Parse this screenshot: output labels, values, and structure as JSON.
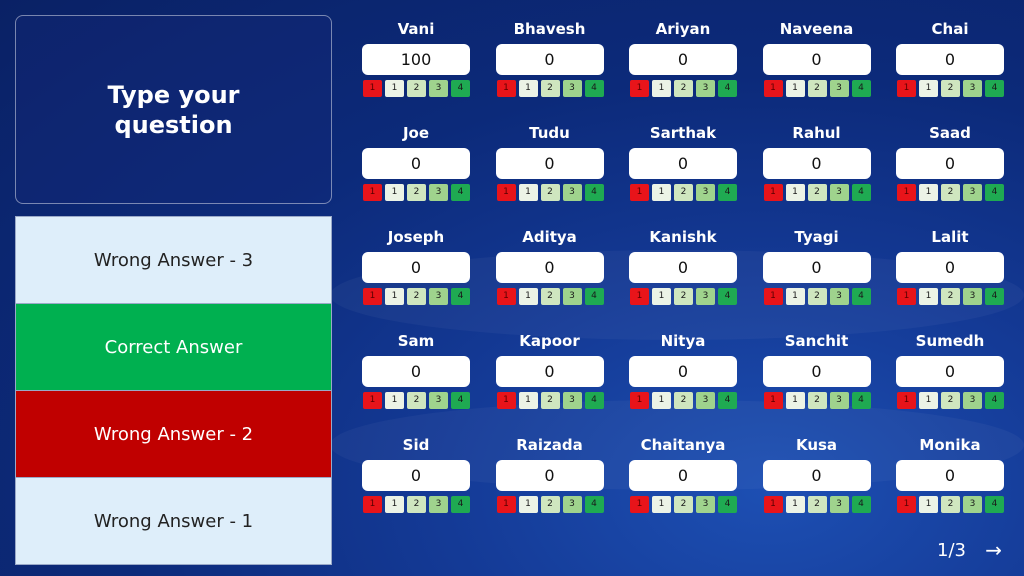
{
  "question": {
    "text": "Type your question"
  },
  "answers": [
    {
      "label": "Wrong Answer - 3",
      "color": "#deeefa",
      "text_color": "#222222"
    },
    {
      "label": "Correct Answer",
      "color": "#00b050",
      "text_color": "#ffffff"
    },
    {
      "label": "Wrong Answer - 2",
      "color": "#c00000",
      "text_color": "#ffffff"
    },
    {
      "label": "Wrong Answer - 1",
      "color": "#deeefa",
      "text_color": "#222222"
    }
  ],
  "rating_labels": [
    "1",
    "1",
    "2",
    "3",
    "4"
  ],
  "players": [
    {
      "name": "Vani",
      "score": "100"
    },
    {
      "name": "Bhavesh",
      "score": "0"
    },
    {
      "name": "Ariyan",
      "score": "0"
    },
    {
      "name": "Naveena",
      "score": "0"
    },
    {
      "name": "Chai",
      "score": "0"
    },
    {
      "name": "Joe",
      "score": "0"
    },
    {
      "name": "Tudu",
      "score": "0"
    },
    {
      "name": "Sarthak",
      "score": "0"
    },
    {
      "name": "Rahul",
      "score": "0"
    },
    {
      "name": "Saad",
      "score": "0"
    },
    {
      "name": "Joseph",
      "score": "0"
    },
    {
      "name": "Aditya",
      "score": "0"
    },
    {
      "name": "Kanishk",
      "score": "0"
    },
    {
      "name": "Tyagi",
      "score": "0"
    },
    {
      "name": "Lalit",
      "score": "0"
    },
    {
      "name": "Sam",
      "score": "0"
    },
    {
      "name": "Kapoor",
      "score": "0"
    },
    {
      "name": "Nitya",
      "score": "0"
    },
    {
      "name": "Sanchit",
      "score": "0"
    },
    {
      "name": "Sumedh",
      "score": "0"
    },
    {
      "name": "Sid",
      "score": "0"
    },
    {
      "name": "Raizada",
      "score": "0"
    },
    {
      "name": "Chaitanya",
      "score": "0"
    },
    {
      "name": "Kusa",
      "score": "0"
    },
    {
      "name": "Monika",
      "score": "0"
    }
  ],
  "pager": {
    "text": "1/3",
    "next_icon": "arrow-right-icon"
  }
}
